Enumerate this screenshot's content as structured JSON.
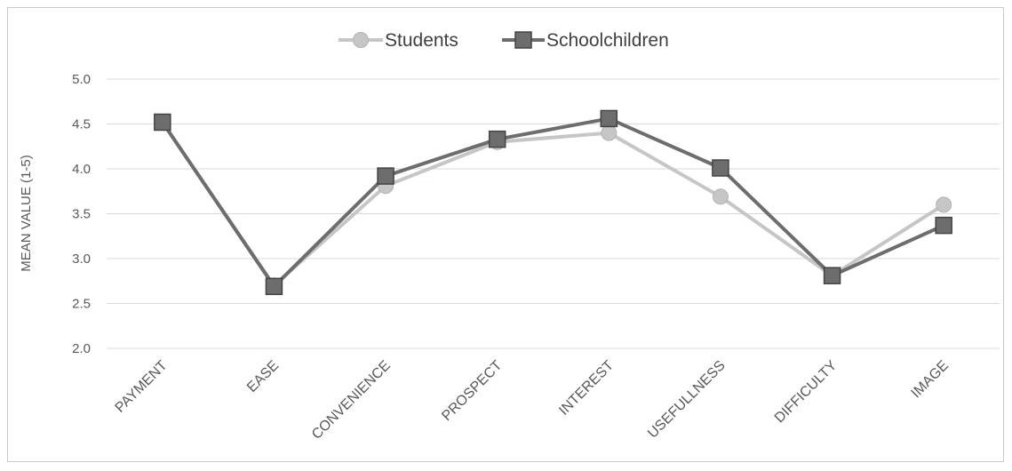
{
  "chart_data": {
    "type": "line",
    "title": "",
    "xlabel": "",
    "ylabel": "MEAN VALUE (1-5)",
    "ylim": [
      2.0,
      5.0
    ],
    "yticks": [
      "2.0",
      "2.5",
      "3.0",
      "3.5",
      "4.0",
      "4.5",
      "5.0"
    ],
    "grid": "horizontal",
    "legend": "top-center",
    "categories": [
      "PAYMENT",
      "EASE",
      "CONVENIENCE",
      "PROSPECT",
      "INTEREST",
      "USEFULLNESS",
      "DIFFICULTY",
      "IMAGE"
    ],
    "series": [
      {
        "name": "Students",
        "marker": "circle",
        "color": "#c6c6c6",
        "values": [
          4.52,
          2.7,
          3.81,
          4.3,
          4.4,
          3.69,
          2.81,
          3.6
        ]
      },
      {
        "name": "Schoolchildren",
        "marker": "square",
        "color": "#6d6d6d",
        "values": [
          4.52,
          2.69,
          3.92,
          4.33,
          4.56,
          4.01,
          2.81,
          3.37
        ]
      }
    ]
  }
}
